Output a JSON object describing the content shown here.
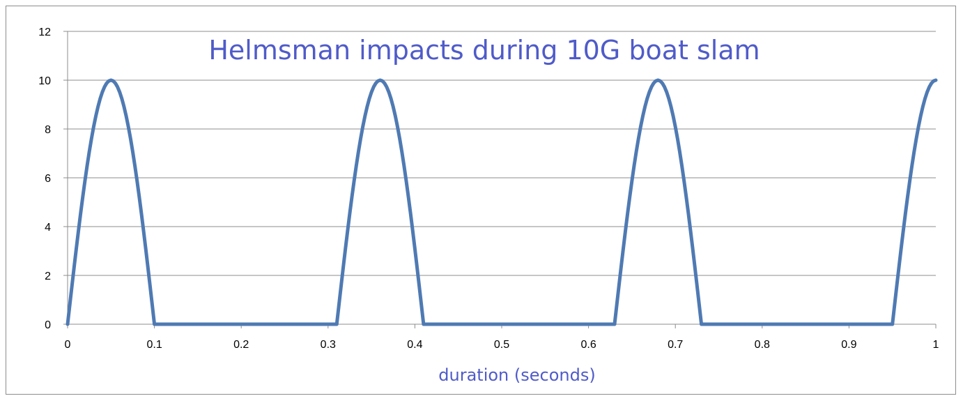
{
  "chart_data": {
    "type": "line",
    "title": "Helmsman impacts during 10G boat slam",
    "xlabel": "duration (seconds)",
    "ylabel": "",
    "xlim": [
      0,
      1
    ],
    "ylim": [
      0,
      12
    ],
    "x_ticks": [
      "0",
      "0.1",
      "0.2",
      "0.3",
      "0.4",
      "0.5",
      "0.6",
      "0.7",
      "0.8",
      "0.9",
      "1"
    ],
    "y_ticks": [
      "0",
      "2",
      "4",
      "6",
      "8",
      "10",
      "12"
    ],
    "grid": "horizontal",
    "series": [
      {
        "x": [
          0,
          0.05,
          0.1,
          0.31,
          0.36,
          0.41,
          0.63,
          0.68,
          0.73,
          0.95,
          1.0
        ],
        "y": [
          0,
          10,
          0,
          0,
          10,
          0,
          0,
          10,
          0,
          0,
          10
        ],
        "pulses": [
          {
            "start": 0.0,
            "peak": 0.05,
            "end": 0.1
          },
          {
            "start": 0.31,
            "peak": 0.36,
            "end": 0.41
          },
          {
            "start": 0.63,
            "peak": 0.68,
            "end": 0.73
          },
          {
            "start": 0.95,
            "peak": 1.0,
            "end": 1.05
          }
        ],
        "peak_value": 10
      }
    ],
    "colors": {
      "line": "#4f7ab3",
      "text": "#4f5bc9",
      "grid": "#8c8c8c"
    }
  }
}
